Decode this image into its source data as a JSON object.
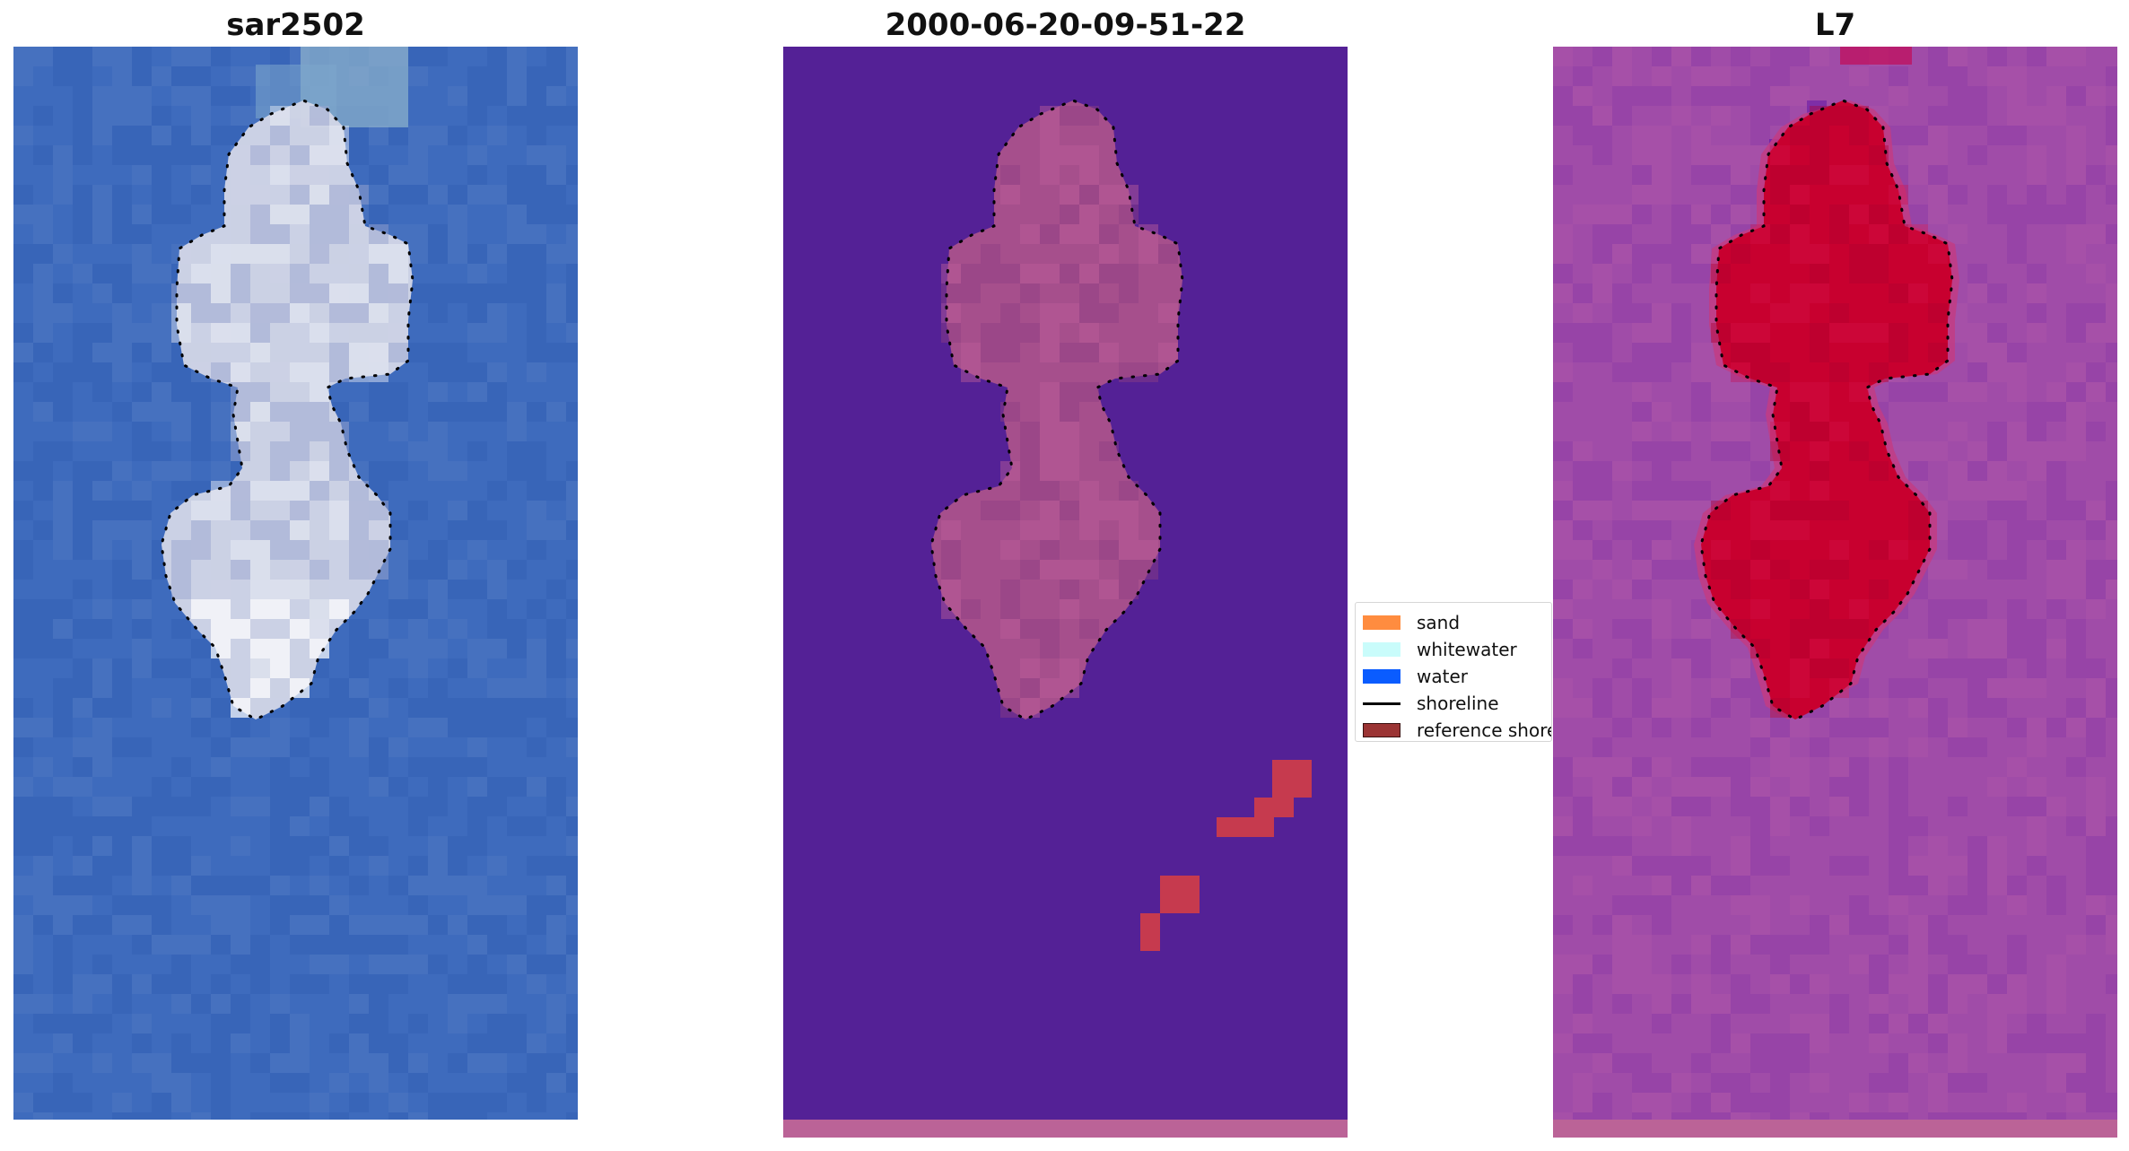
{
  "panels": [
    {
      "title": "sar2502"
    },
    {
      "title": "2000-06-20-09-51-22"
    },
    {
      "title": "L7"
    }
  ],
  "legend": {
    "items": [
      {
        "label": "sand",
        "kind": "patch",
        "color": "#ff8c3f"
      },
      {
        "label": "whitewater",
        "kind": "patch",
        "color": "#c9fcfb"
      },
      {
        "label": "water",
        "kind": "patch",
        "color": "#0a5cff"
      },
      {
        "label": "shoreline",
        "kind": "line",
        "color": "#000000"
      },
      {
        "label": "reference shoreline",
        "kind": "patch",
        "color": "#9b3434"
      }
    ]
  },
  "colors": {
    "rgb_water": "#3e6bbd",
    "rgb_island": "#d3d6e6",
    "class_background": "#542196",
    "class_island": "#a64f8c",
    "class_sand_overlay": "#c63a4e",
    "class_bottom_strip": "#bb6397",
    "ndwi_background": "#a04ca8",
    "ndwi_island": "#c8002f",
    "ndwi_bottom_strip": "#bb6397"
  }
}
